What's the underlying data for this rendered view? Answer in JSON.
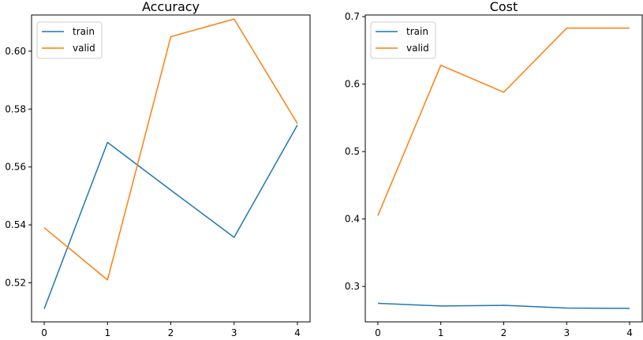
{
  "chart_data": [
    {
      "type": "line",
      "title": "Accuracy",
      "xlabel": "",
      "ylabel": "",
      "x": [
        0,
        1,
        2,
        3,
        4
      ],
      "xlim": [
        -0.2,
        4.2
      ],
      "ylim": [
        0.5065,
        0.6125
      ],
      "xticks": [
        0,
        1,
        2,
        3,
        4
      ],
      "yticks": [
        0.52,
        0.54,
        0.56,
        0.58,
        0.6
      ],
      "ytick_labels": [
        "0.52",
        "0.54",
        "0.56",
        "0.58",
        "0.60"
      ],
      "legend_position": "top-left",
      "series": [
        {
          "name": "train",
          "color": "#1f77b4",
          "values": [
            0.511,
            0.5685,
            0.552,
            0.5357,
            0.5745
          ]
        },
        {
          "name": "valid",
          "color": "#ff7f0e",
          "values": [
            0.539,
            0.521,
            0.605,
            0.6111,
            0.575
          ]
        }
      ]
    },
    {
      "type": "line",
      "title": "Cost",
      "xlabel": "",
      "ylabel": "",
      "x": [
        0,
        1,
        2,
        3,
        4
      ],
      "xlim": [
        -0.2,
        4.2
      ],
      "ylim": [
        0.2475,
        0.7025
      ],
      "xticks": [
        0,
        1,
        2,
        3,
        4
      ],
      "yticks": [
        0.3,
        0.4,
        0.5,
        0.6,
        0.7
      ],
      "ytick_labels": [
        "0.3",
        "0.4",
        "0.5",
        "0.6",
        "0.7"
      ],
      "legend_position": "top-left",
      "series": [
        {
          "name": "train",
          "color": "#1f77b4",
          "values": [
            0.275,
            0.271,
            0.272,
            0.268,
            0.2675
          ]
        },
        {
          "name": "valid",
          "color": "#ff7f0e",
          "values": [
            0.405,
            0.628,
            0.588,
            0.683,
            0.683
          ]
        }
      ]
    }
  ]
}
